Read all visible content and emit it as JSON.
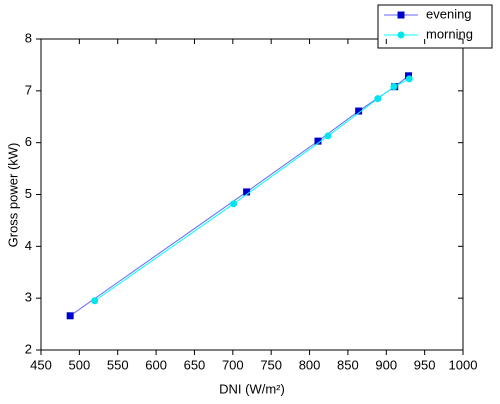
{
  "chart_data": {
    "type": "line",
    "x_label": "DNI (W/m²)",
    "y_label": "Gross power (kW)",
    "xlim": [
      450,
      1000
    ],
    "xticks": [
      450,
      500,
      550,
      600,
      650,
      700,
      750,
      800,
      850,
      900,
      950,
      1000
    ],
    "ylim": [
      2,
      8
    ],
    "yticks": [
      2,
      3,
      4,
      5,
      6,
      7,
      8
    ],
    "legend": "top-right",
    "series": [
      {
        "name": "evening",
        "color": "#6666ff",
        "marker_color": "#0000cc",
        "marker": "square",
        "x": [
          488,
          718,
          811,
          864,
          911,
          929
        ],
        "values": [
          2.66,
          5.05,
          6.03,
          6.61,
          7.08,
          7.29
        ]
      },
      {
        "name": "morning",
        "color": "#00ffff",
        "marker_color": "#00e5ee",
        "marker": "circle",
        "x": [
          520,
          701,
          824,
          889,
          910,
          930
        ],
        "values": [
          2.95,
          4.82,
          6.13,
          6.85,
          7.08,
          7.23
        ]
      }
    ]
  }
}
